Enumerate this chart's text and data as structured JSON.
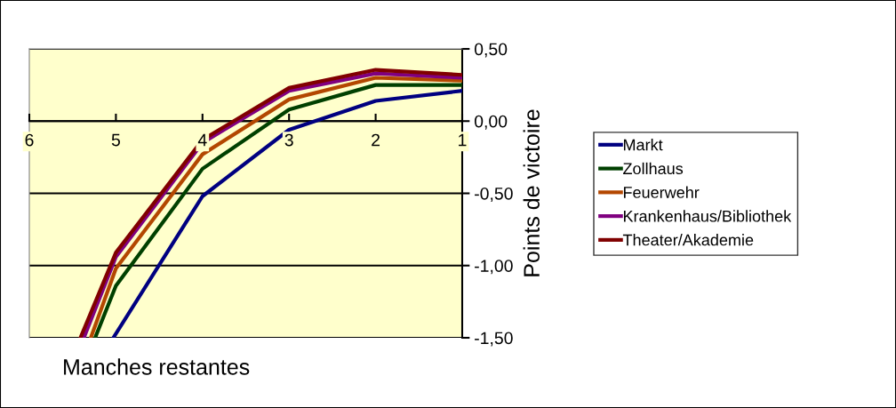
{
  "chart_data": {
    "type": "line",
    "xlabel": "Manches restantes",
    "ylabel": "Points de victoire",
    "xlim": [
      6,
      1
    ],
    "xticks": [
      6,
      5,
      4,
      3,
      2,
      1
    ],
    "ylim": [
      -1.5,
      0.5
    ],
    "yticks": [
      {
        "value": 0.5,
        "label": "0,50"
      },
      {
        "value": 0,
        "label": "0,00"
      },
      {
        "value": -0.5,
        "label": "-0,50"
      },
      {
        "value": -1,
        "label": "-1,00"
      },
      {
        "value": -1.5,
        "label": "-1,50"
      }
    ],
    "grid": "y",
    "legend": "right",
    "marker": "none",
    "line_style": "solid",
    "series": [
      {
        "name": "Markt",
        "color": "#000080",
        "x": [
          5.03,
          4,
          3,
          2,
          1
        ],
        "values": [
          -1.5,
          -0.52,
          -0.06,
          0.14,
          0.21
        ]
      },
      {
        "name": "Zollhaus",
        "color": "#004000",
        "x": [
          5.24,
          5,
          4,
          3,
          2,
          1
        ],
        "values": [
          -1.5,
          -1.14,
          -0.33,
          0.08,
          0.25,
          0.25
        ]
      },
      {
        "name": "Feuerwehr",
        "color": "#b34700",
        "x": [
          5.29,
          5,
          4,
          3,
          2,
          1
        ],
        "values": [
          -1.5,
          -1.02,
          -0.23,
          0.15,
          0.3,
          0.28
        ]
      },
      {
        "name": "Krankenhaus/Bibliothek",
        "color": "#800080",
        "x": [
          5.37,
          5,
          4,
          3,
          2,
          1
        ],
        "values": [
          -1.5,
          -0.94,
          -0.15,
          0.21,
          0.33,
          0.3
        ]
      },
      {
        "name": "Theater/Akademie",
        "color": "#800000",
        "x": [
          5.41,
          5,
          4,
          3,
          2,
          1
        ],
        "values": [
          -1.5,
          -0.91,
          -0.13,
          0.23,
          0.355,
          0.32
        ]
      }
    ]
  }
}
